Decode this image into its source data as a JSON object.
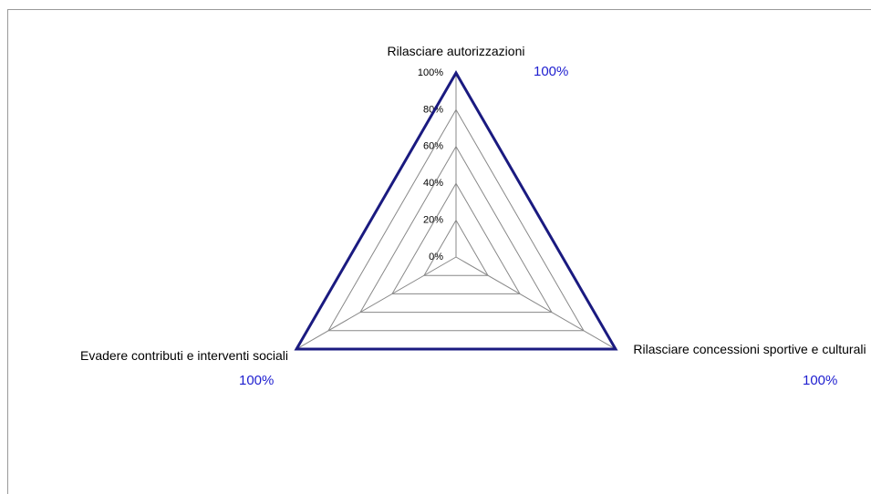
{
  "chart_data": {
    "type": "radar",
    "categories": [
      "Rilasciare autorizzazioni",
      "Rilasciare concessioni sportive e culturali",
      "Evadere contributi e interventi sociali"
    ],
    "series": [
      {
        "color": "#1a1a80",
        "values": [
          100,
          100,
          100
        ],
        "value_labels": [
          "100%",
          "100%",
          "100%"
        ]
      }
    ],
    "ylim": [
      0,
      100
    ],
    "yticks": [
      {
        "value": 0,
        "label": "0%"
      },
      {
        "value": 20,
        "label": "20%"
      },
      {
        "value": 40,
        "label": "40%"
      },
      {
        "value": 60,
        "label": "60%"
      },
      {
        "value": 80,
        "label": "80%"
      },
      {
        "value": 100,
        "label": "100%"
      }
    ],
    "grid": true
  }
}
